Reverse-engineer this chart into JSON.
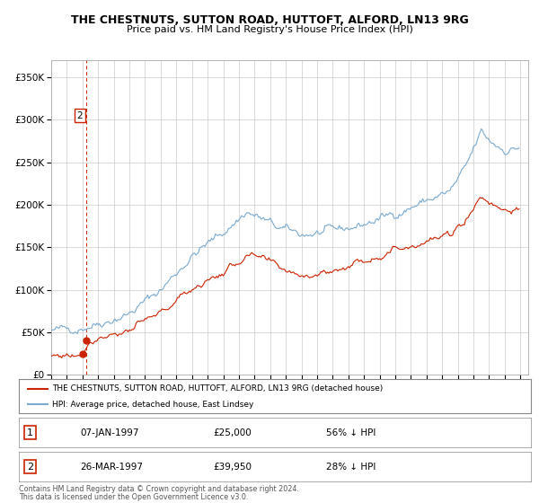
{
  "title": "THE CHESTNUTS, SUTTON ROAD, HUTTOFT, ALFORD, LN13 9RG",
  "subtitle": "Price paid vs. HM Land Registry's House Price Index (HPI)",
  "hpi_color": "#7aaad0",
  "property_color": "#cc2200",
  "dashed_color": "#cc2200",
  "background_color": "#ffffff",
  "grid_color": "#cccccc",
  "ylim": [
    0,
    370000
  ],
  "yticks": [
    0,
    50000,
    100000,
    150000,
    200000,
    250000,
    300000,
    350000
  ],
  "ytick_labels": [
    "£0",
    "£50K",
    "£100K",
    "£150K",
    "£200K",
    "£250K",
    "£300K",
    "£350K"
  ],
  "xlim_start": 1995.0,
  "xlim_end": 2025.5,
  "sale1_x": 1997.02,
  "sale1_y": 25000,
  "sale2_x": 1997.23,
  "sale2_y": 39950,
  "legend_line1": "THE CHESTNUTS, SUTTON ROAD, HUTTOFT, ALFORD, LN13 9RG (detached house)",
  "legend_line2": "HPI: Average price, detached house, East Lindsey",
  "footer_line1": "Contains HM Land Registry data © Crown copyright and database right 2024.",
  "footer_line2": "This data is licensed under the Open Government Licence v3.0.",
  "table_row1": [
    "1",
    "07-JAN-1997",
    "£25,000",
    "56% ↓ HPI"
  ],
  "table_row2": [
    "2",
    "26-MAR-1997",
    "£39,950",
    "28% ↓ HPI"
  ]
}
